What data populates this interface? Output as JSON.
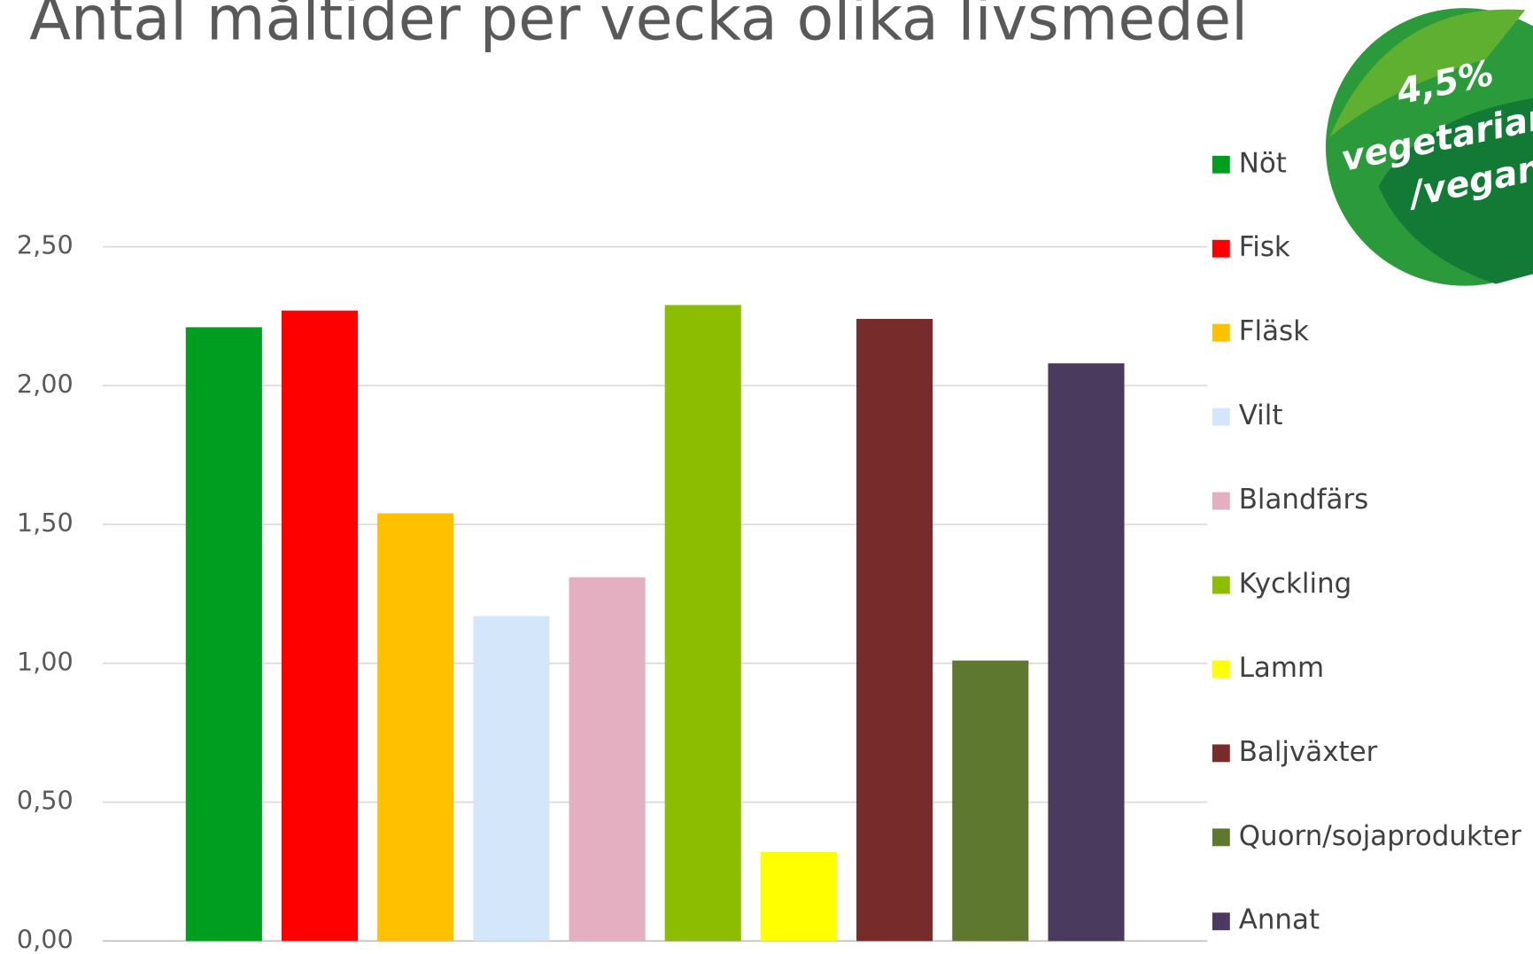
{
  "chart_data": {
    "type": "bar",
    "title": "Antal måltider per vecka olika livsmedel",
    "categories": [
      "Nöt",
      "Fisk",
      "Fläsk",
      "Vilt",
      "Blandfärs",
      "Kyckling",
      "Lamm",
      "Baljväxter",
      "Quorn/sojaprodukter",
      "Annat"
    ],
    "values": [
      2.21,
      2.27,
      1.54,
      1.17,
      1.31,
      2.29,
      0.32,
      2.24,
      1.01,
      2.08
    ],
    "colors": [
      "#009e20",
      "#ff0000",
      "#ffc000",
      "#d3e6fa",
      "#e4b0c1",
      "#8cbd00",
      "#ffff00",
      "#772b2b",
      "#5e7830",
      "#4a3a5e"
    ],
    "ylim": [
      0,
      2.5
    ],
    "yticks": [
      {
        "value": 0,
        "label": "0,00"
      },
      {
        "value": 0.5,
        "label": "0,50"
      },
      {
        "value": 1,
        "label": "1,00"
      },
      {
        "value": 1.5,
        "label": "1,50"
      },
      {
        "value": 2,
        "label": "2,00"
      },
      {
        "value": 2.5,
        "label": "2,50"
      }
    ],
    "grid": true,
    "legend": "right",
    "badge": [
      "4,5%",
      "vegetarian",
      "/vegan"
    ]
  }
}
